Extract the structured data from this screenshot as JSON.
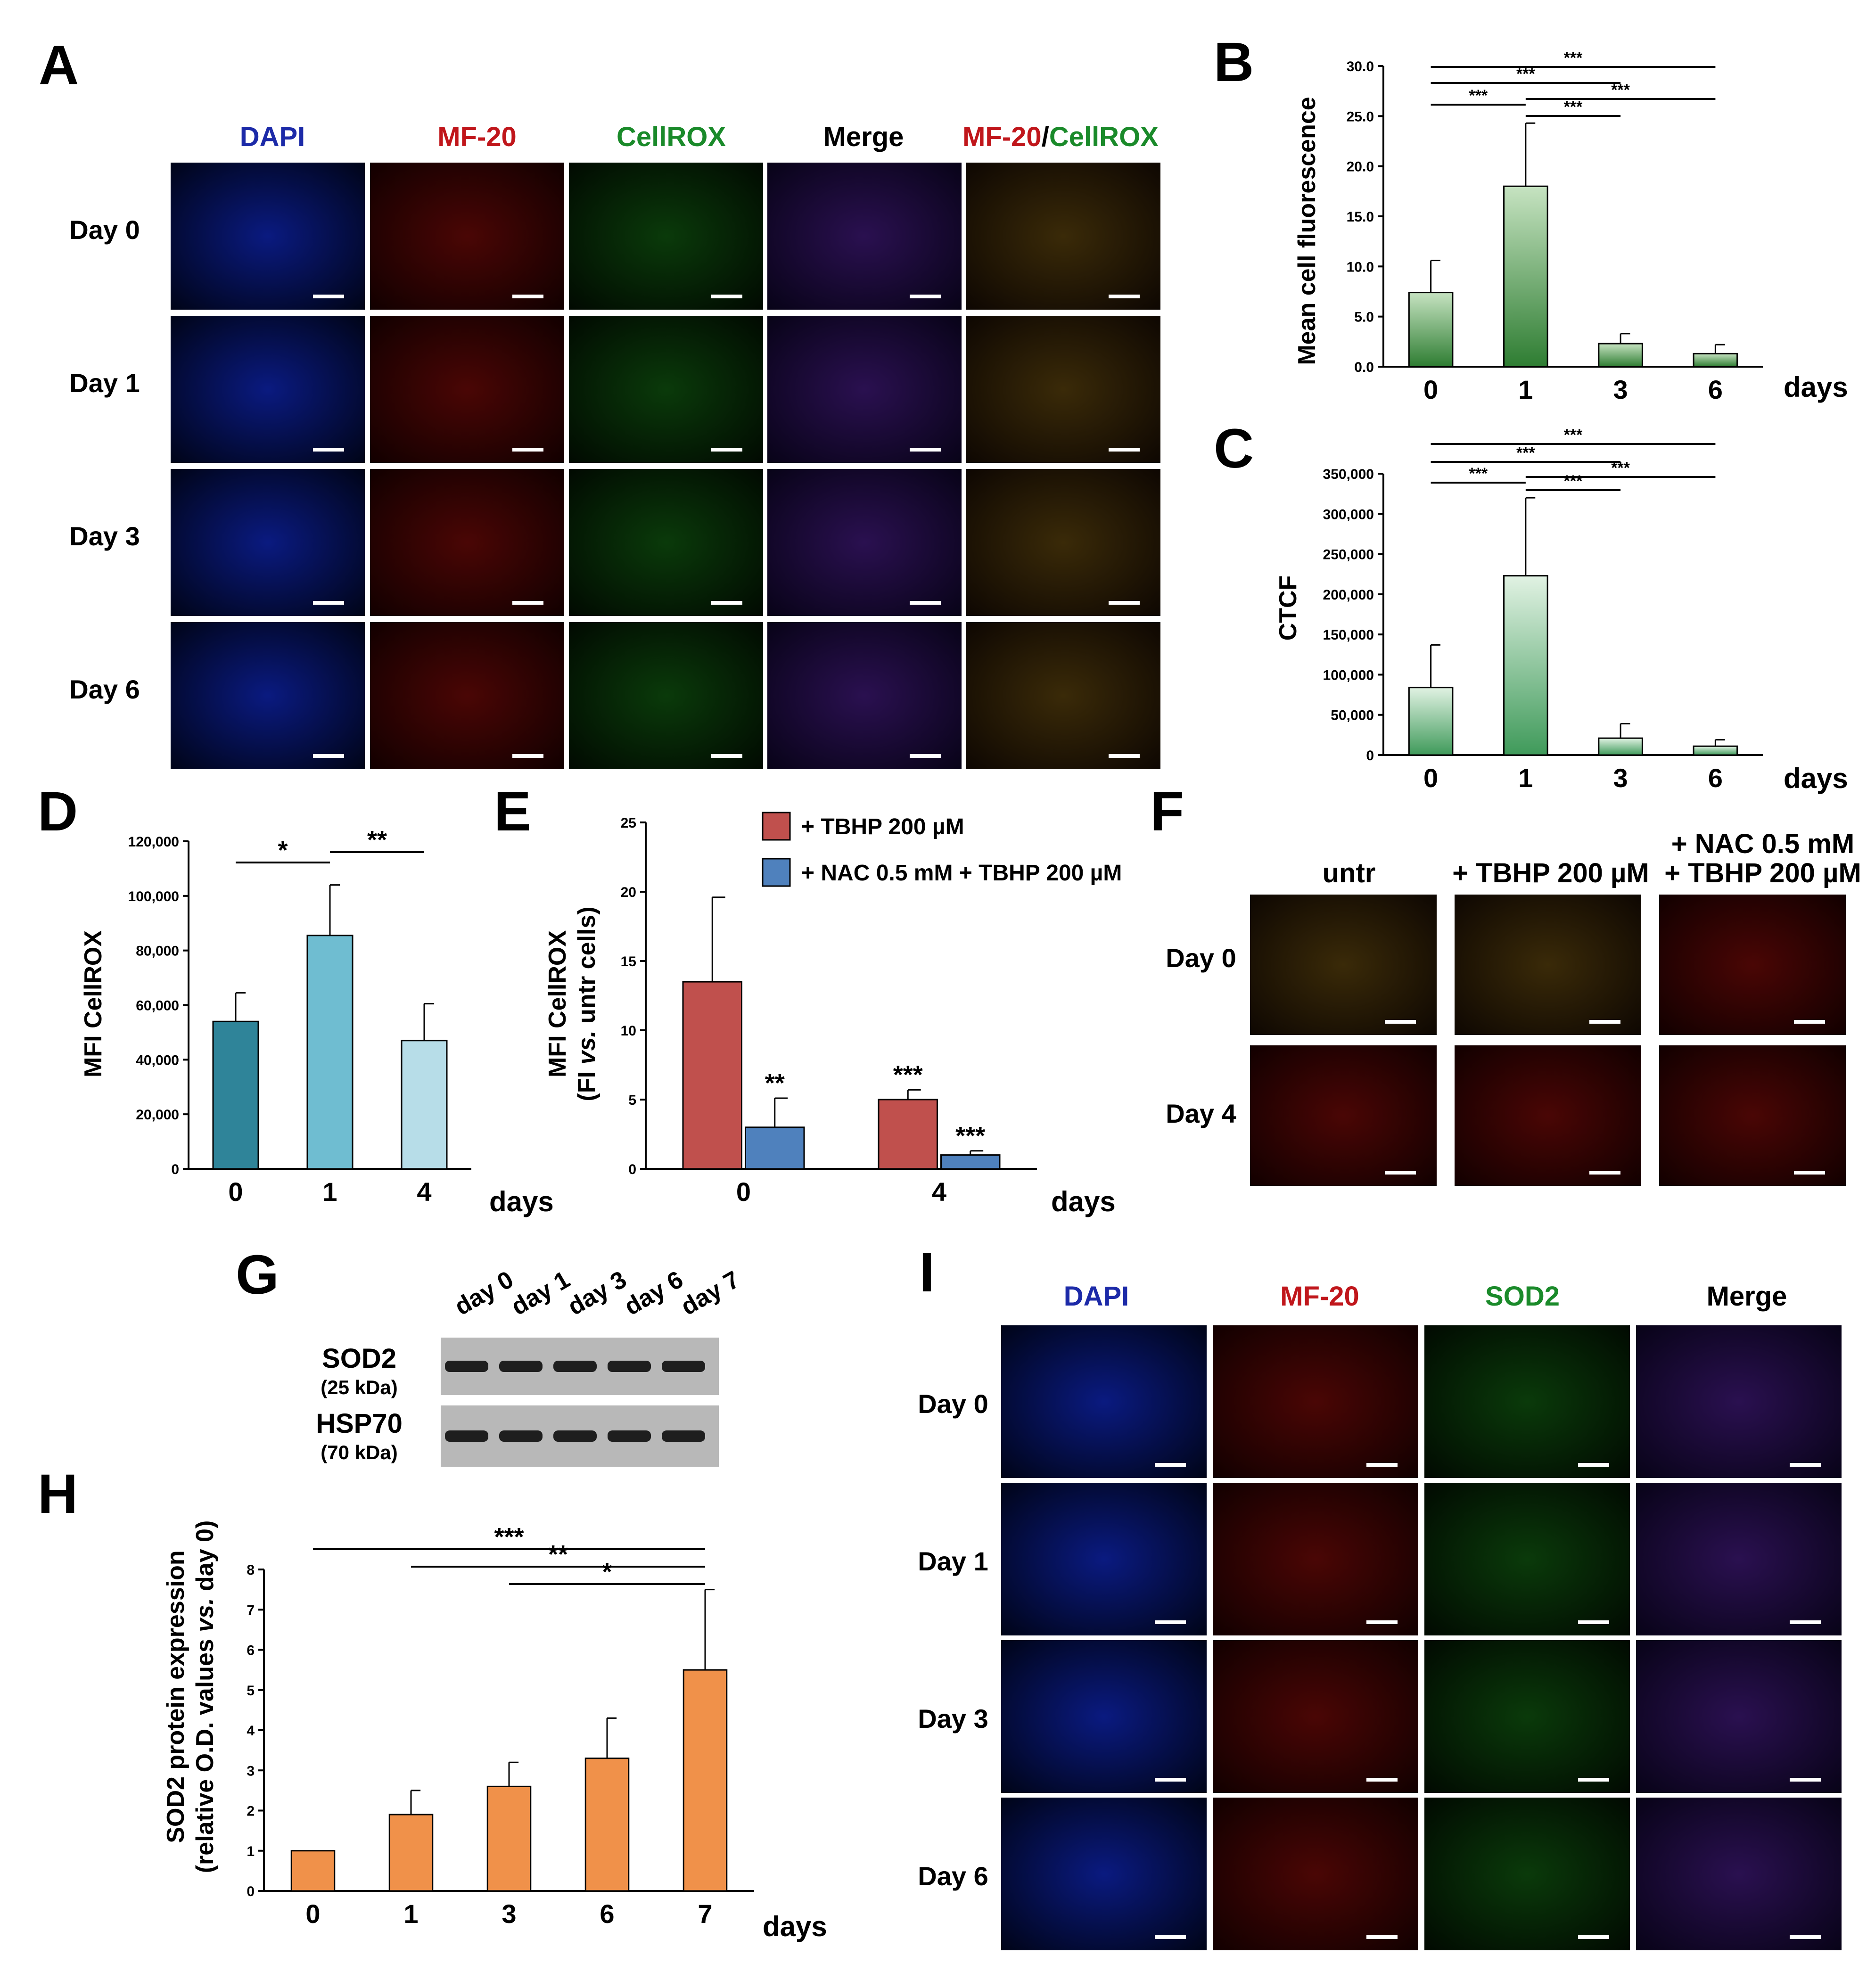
{
  "colors": {
    "blue_label": "#1c2aa8",
    "red_label": "#c0161b",
    "green_label": "#1a8a2a",
    "dapi": "#1f3fd8",
    "mf20": "#d41a14",
    "cellrox": "#2bb52b"
  },
  "panel_A": {
    "letter": "A",
    "columns": [
      "DAPI",
      "MF-20",
      "CellROX",
      "Merge"
    ],
    "overlay_label": {
      "part1": "MF-20",
      "sep": "/",
      "part2": "CellROX"
    },
    "rows": [
      "Day 0",
      "Day 1",
      "Day 3",
      "Day 6"
    ],
    "image_icon": "micrograph-icon",
    "scalebar_icon": "scale-bar-icon"
  },
  "panel_F": {
    "letter": "F",
    "columns": [
      "untr",
      "+ TBHP 200 µM"
    ],
    "nac_col": {
      "line1": "+ NAC 0.5 mM",
      "line2": "+ TBHP 200 µM"
    },
    "rows": [
      "Day 0",
      "Day 4"
    ]
  },
  "panel_G": {
    "letter": "G",
    "lanes": [
      "day 0",
      "day 1",
      "day 3",
      "day 6",
      "day 7"
    ],
    "proteins": [
      {
        "name": "SOD2",
        "size": "(25 kDa)"
      },
      {
        "name": "HSP70",
        "size": "(70 kDa)"
      }
    ]
  },
  "panel_I": {
    "letter": "I",
    "columns": [
      "DAPI",
      "MF-20",
      "SOD2",
      "Merge"
    ],
    "rows": [
      "Day 0",
      "Day 1",
      "Day 3",
      "Day 6"
    ]
  },
  "chart_data": [
    {
      "panel": "B",
      "type": "bar",
      "categories": [
        "0",
        "1",
        "3",
        "6"
      ],
      "values": [
        7.4,
        18.0,
        2.3,
        1.3
      ],
      "errors": [
        3.2,
        6.3,
        1.0,
        0.9
      ],
      "ylabel": "Mean cell fluorescence",
      "xlabel": "days",
      "ylim": [
        0,
        30
      ],
      "yticks": [
        "0.0",
        "5.0",
        "10.0",
        "15.0",
        "20.0",
        "25.0",
        "30.0"
      ],
      "bar_color": "#2e7d32",
      "significance": [
        {
          "from": "0",
          "to": "6",
          "label": "***"
        },
        {
          "from": "0",
          "to": "3",
          "label": "***"
        },
        {
          "from": "1",
          "to": "6",
          "label": "***"
        },
        {
          "from": "0",
          "to": "1",
          "label": "***"
        },
        {
          "from": "1",
          "to": "3",
          "label": "***"
        }
      ]
    },
    {
      "panel": "C",
      "type": "bar",
      "categories": [
        "0",
        "1",
        "3",
        "6"
      ],
      "values": [
        84000,
        223000,
        21000,
        11000
      ],
      "errors": [
        53000,
        97000,
        18000,
        8000
      ],
      "ylabel": "CTCF",
      "xlabel": "days",
      "ylim": [
        0,
        350000
      ],
      "yticks": [
        "0",
        "50,000",
        "100,000",
        "150,000",
        "200,000",
        "250,000",
        "300,000",
        "350,000"
      ],
      "bar_color": "#3f9a5a",
      "significance": [
        {
          "from": "0",
          "to": "6",
          "label": "***"
        },
        {
          "from": "0",
          "to": "3",
          "label": "***"
        },
        {
          "from": "1",
          "to": "6",
          "label": "***"
        },
        {
          "from": "0",
          "to": "1",
          "label": "***"
        },
        {
          "from": "1",
          "to": "3",
          "label": "***"
        }
      ]
    },
    {
      "panel": "D",
      "type": "bar",
      "categories": [
        "0",
        "1",
        "4"
      ],
      "values": [
        54000,
        85500,
        47000
      ],
      "errors": [
        10500,
        18500,
        13500
      ],
      "colors": [
        "#2f8499",
        "#6fbdd1",
        "#b7dde8"
      ],
      "ylabel": "MFI CellROX",
      "xlabel": "days",
      "ylim": [
        0,
        120000
      ],
      "yticks": [
        "0",
        "20,000",
        "40,000",
        "60,000",
        "80,000",
        "100,000",
        "120,000"
      ],
      "significance": [
        {
          "from": "0",
          "to": "1",
          "label": "*"
        },
        {
          "from": "1",
          "to": "4",
          "label": "**"
        }
      ]
    },
    {
      "panel": "E",
      "type": "bar",
      "categories": [
        "0",
        "4"
      ],
      "series": [
        {
          "name": "+ TBHP 200 µM",
          "color": "#c0504d",
          "values": [
            13.5,
            5.0
          ],
          "errors": [
            6.1,
            0.7
          ],
          "marks": [
            "",
            "***"
          ]
        },
        {
          "name": "+ NAC 0.5 mM + TBHP 200 µM",
          "color": "#4f81bd",
          "values": [
            3.0,
            1.0
          ],
          "errors": [
            2.1,
            0.3
          ],
          "marks": [
            "**",
            "***"
          ]
        }
      ],
      "ylabel_line1": "MFI CellROX",
      "ylabel_line2_pre": "(FI ",
      "ylabel_line2_it": "vs.",
      "ylabel_line2_post": " untr cells)",
      "xlabel": "days",
      "ylim": [
        0,
        25
      ],
      "yticks": [
        "0",
        "5",
        "10",
        "15",
        "20",
        "25"
      ],
      "legend": "top-right"
    },
    {
      "panel": "H",
      "type": "bar",
      "categories": [
        "0",
        "1",
        "3",
        "6",
        "7"
      ],
      "values": [
        1.0,
        1.9,
        2.6,
        3.3,
        5.5
      ],
      "errors": [
        0.0,
        0.6,
        0.6,
        1.0,
        2.0
      ],
      "bar_color": "#f0914a",
      "ylabel_line1": "SOD2 protein expression",
      "ylabel_line2_pre": "(relative O.D. values ",
      "ylabel_line2_it": "vs.",
      "ylabel_line2_post": " day 0)",
      "xlabel": "days",
      "ylim": [
        0,
        8
      ],
      "yticks": [
        "0",
        "1",
        "2",
        "3",
        "4",
        "5",
        "6",
        "7",
        "8"
      ],
      "significance": [
        {
          "from": "0",
          "to": "7",
          "label": "***"
        },
        {
          "from": "1",
          "to": "7",
          "label": "**"
        },
        {
          "from": "3",
          "to": "7",
          "label": "*"
        }
      ]
    }
  ]
}
